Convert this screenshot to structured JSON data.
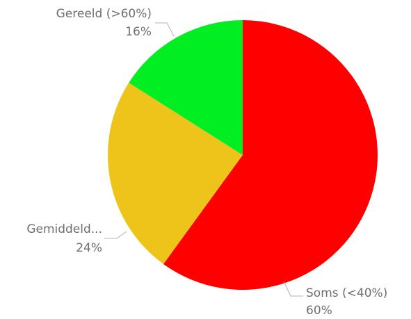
{
  "chart_data": {
    "type": "pie",
    "slices": [
      {
        "label": "Soms (<40%)",
        "value": 60,
        "value_label": "60%",
        "color": "#ff0000"
      },
      {
        "label": "Gemiddeld...",
        "value": 24,
        "value_label": "24%",
        "color": "#eec41a"
      },
      {
        "label": "Gereeld (>60%)",
        "value": 16,
        "value_label": "16%",
        "color": "#00ee22"
      }
    ],
    "start": "top",
    "direction": "clockwise",
    "legend": "none"
  }
}
